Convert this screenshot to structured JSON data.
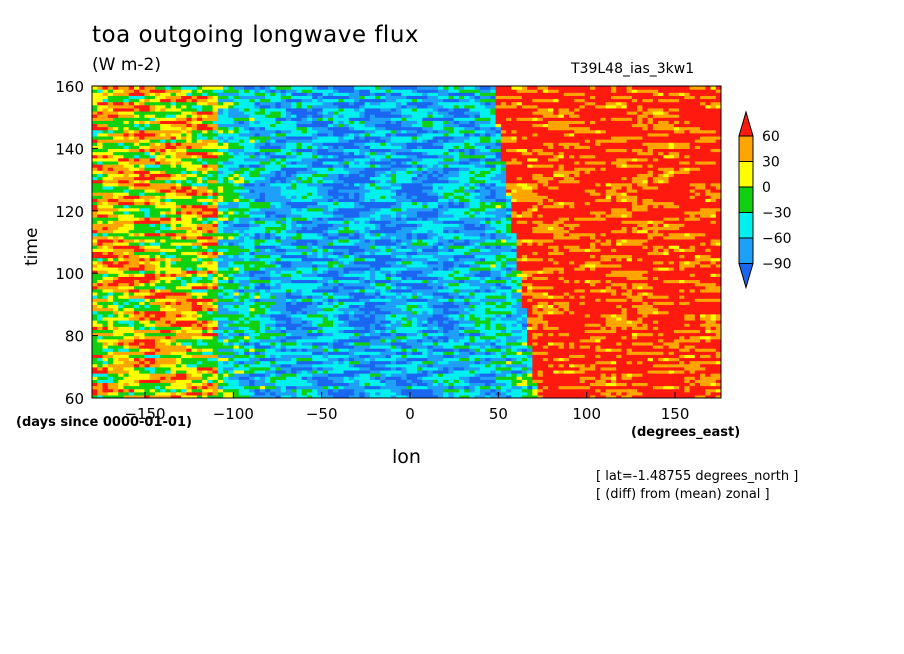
{
  "chart_data": {
    "type": "heatmap",
    "title": "toa outgoing longwave flux",
    "units": "(W m-2)",
    "run_name": "T39L48_ias_3kw1",
    "xlabel": "lon",
    "ylabel": "time",
    "x_units": "(degrees_east)",
    "y_units": "(days since 0000-01-01)",
    "xlim": [
      -180,
      176
    ],
    "ylim": [
      60,
      160
    ],
    "x_ticks": [
      -150,
      -100,
      -50,
      0,
      50,
      100,
      150
    ],
    "y_ticks": [
      60,
      80,
      100,
      120,
      140,
      160
    ],
    "notes": [
      "[ lat=-1.48755 degrees_north ]",
      "[ (diff) from (mean) zonal ]"
    ],
    "colorbar": {
      "levels": [
        -90,
        -60,
        -30,
        0,
        30,
        60
      ],
      "colors": [
        "#1a66f0",
        "#1fa0f8",
        "#00f0f0",
        "#10d010",
        "#ffff00",
        "#ffa500",
        "#ff1a10"
      ],
      "extend": "both"
    },
    "pattern": {
      "description_regions": [
        {
          "lon": [
            -180,
            -110
          ],
          "dominant": "positive"
        },
        {
          "lon": [
            -110,
            70
          ],
          "dominant": "negative"
        },
        {
          "lon": [
            70,
            176
          ],
          "dominant": "strong_positive"
        }
      ]
    }
  }
}
